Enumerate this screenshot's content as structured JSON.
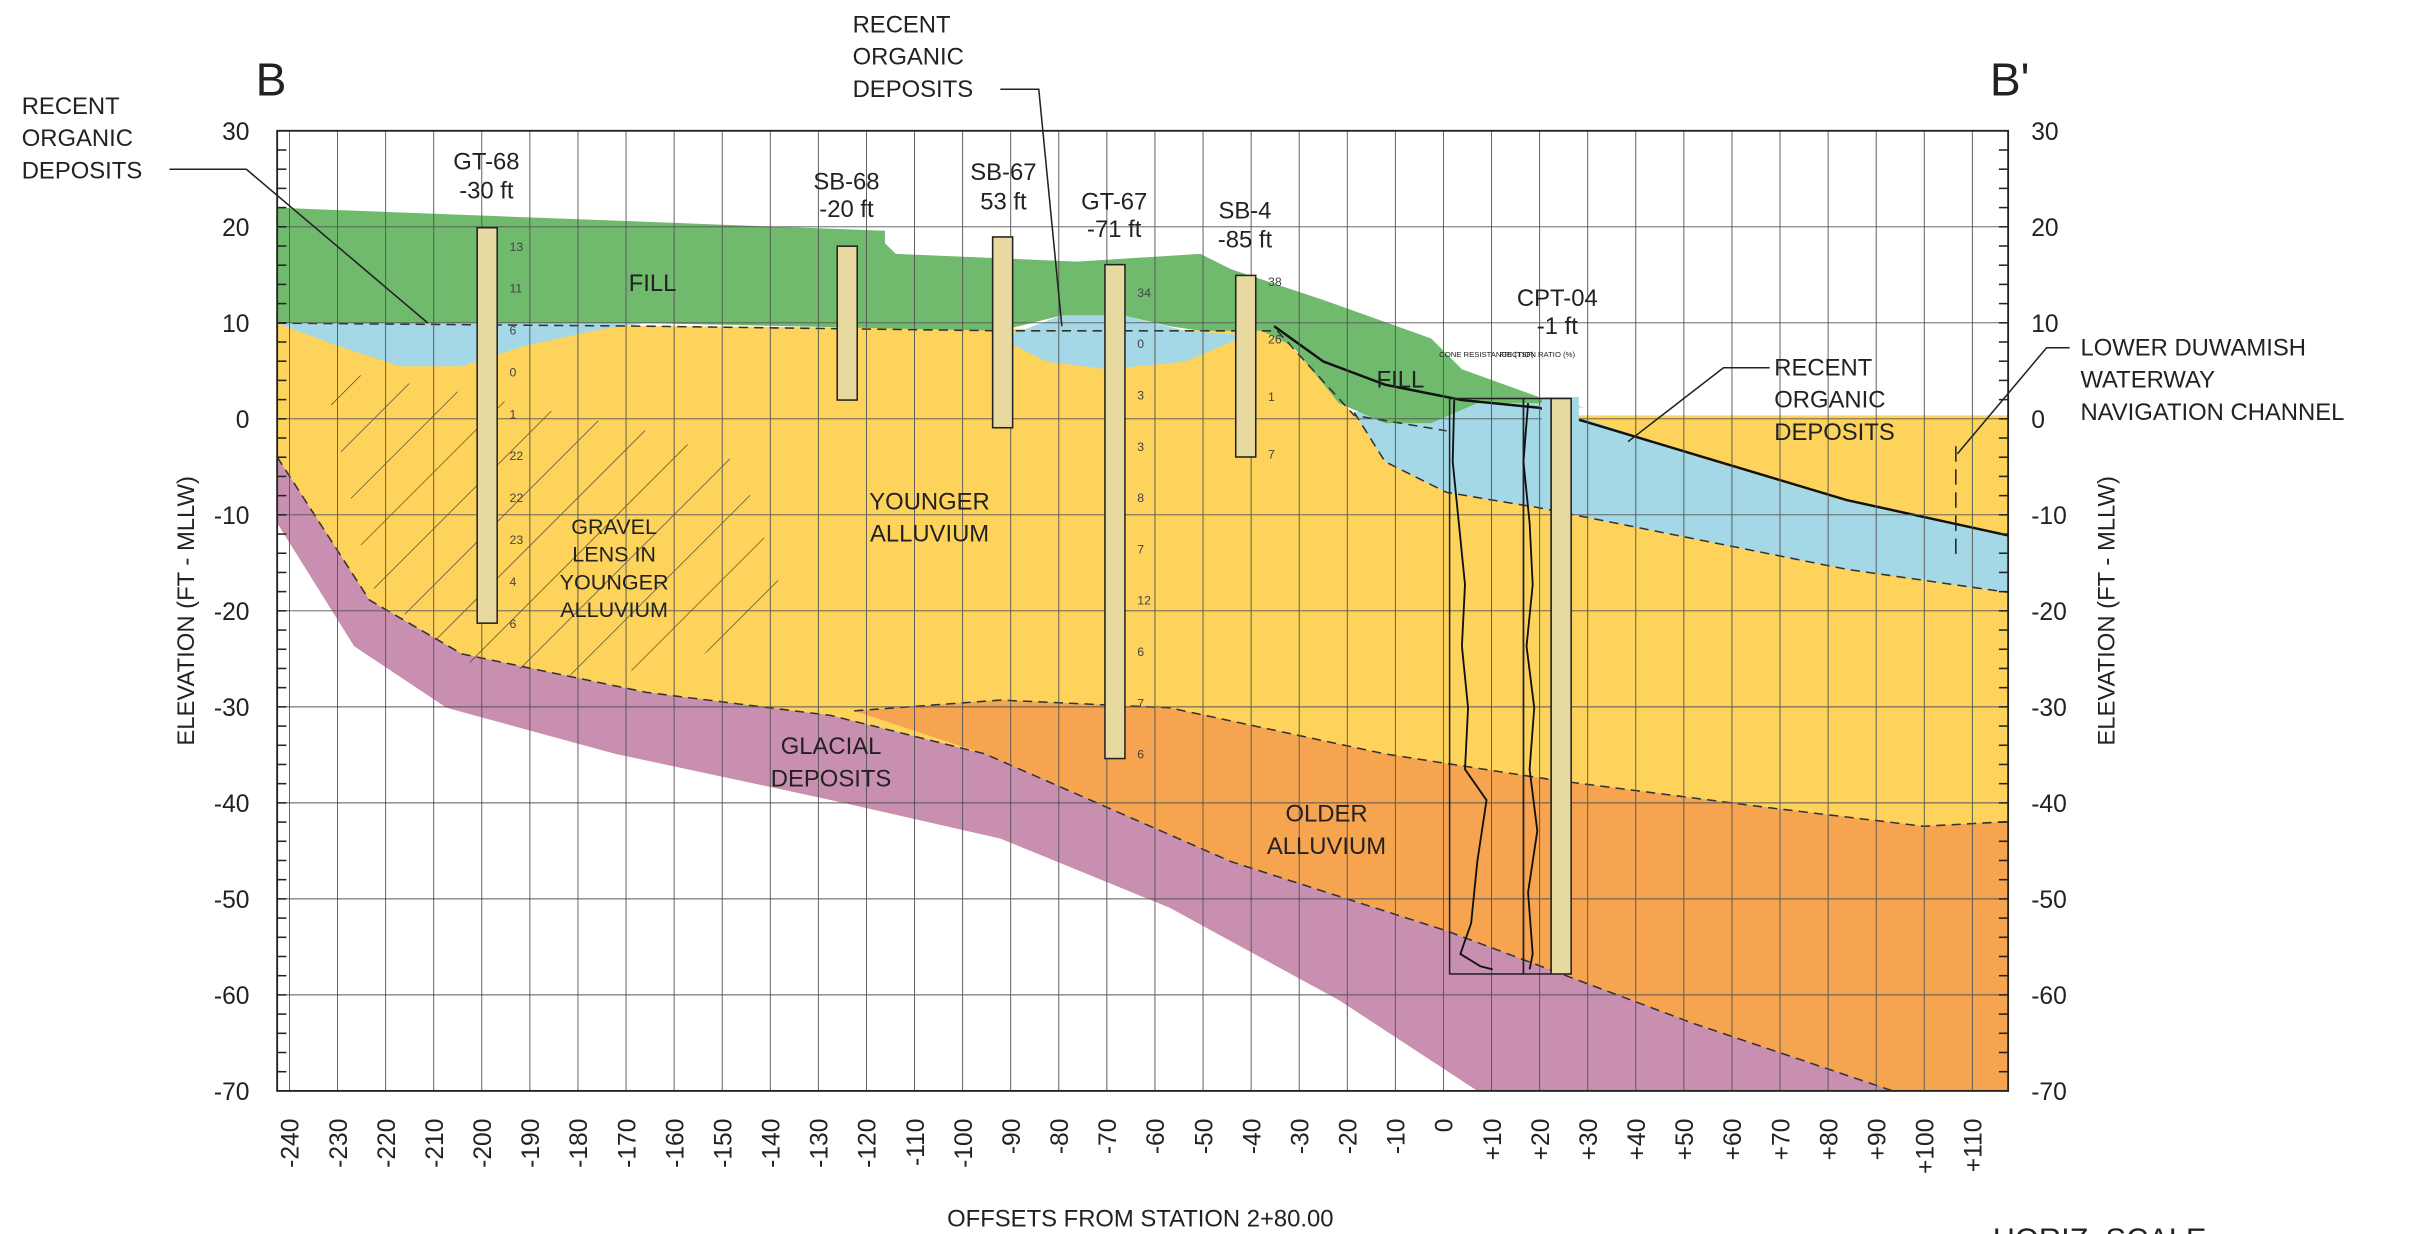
{
  "section": {
    "start_label": "B",
    "end_label": "B'"
  },
  "axes": {
    "y_label": "ELEVATION (FT - MLLW)",
    "y_label_right": "ELEVATION (FT - MLLW)",
    "x_label": "OFFSETS FROM STATION 2+80.00",
    "yticks": [
      30,
      20,
      10,
      0,
      -10,
      -20,
      -30,
      -40,
      -50,
      -60,
      -70
    ],
    "xticks": [
      -240,
      -230,
      -220,
      -210,
      -200,
      -190,
      -180,
      -170,
      -160,
      -150,
      -140,
      -130,
      -120,
      -110,
      -100,
      -90,
      -80,
      -70,
      -60,
      -50,
      -40,
      -30,
      -20,
      -10,
      0,
      {
        "value": 10,
        "label": "+10"
      },
      {
        "value": 20,
        "label": "+20"
      },
      {
        "value": 30,
        "label": "+30"
      },
      {
        "value": 40,
        "label": "+40"
      },
      {
        "value": 50,
        "label": "+50"
      },
      {
        "value": 60,
        "label": "+60"
      },
      {
        "value": 70,
        "label": "+70"
      },
      {
        "value": 80,
        "label": "+80"
      },
      {
        "value": 90,
        "label": "+90"
      },
      {
        "value": 100,
        "label": "+100"
      },
      {
        "value": 110,
        "label": "+110"
      }
    ]
  },
  "annotations": [
    {
      "lines": [
        "RECENT",
        "ORGANIC",
        "DEPOSITS"
      ]
    },
    {
      "lines": [
        "RECENT",
        "ORGANIC",
        "DEPOSITS"
      ]
    },
    {
      "lines": [
        "RECENT",
        "ORGANIC",
        "DEPOSITS"
      ]
    },
    {
      "lines": [
        "LOWER DUWAMISH",
        "WATERWAY",
        "NAVIGATION CHANNEL"
      ]
    }
  ],
  "layers": [
    {
      "lines": [
        "FILL"
      ]
    },
    {
      "lines": [
        "FILL"
      ]
    },
    {
      "lines": [
        "YOUNGER",
        "ALLUVIUM"
      ]
    },
    {
      "lines": [
        "GRAVEL",
        "LENS IN",
        "YOUNGER",
        "ALLUVIUM"
      ]
    },
    {
      "lines": [
        "GLACIAL",
        "DEPOSITS"
      ]
    },
    {
      "lines": [
        "OLDER",
        "ALLUVIUM"
      ]
    }
  ],
  "borings": [
    {
      "name": "GT-68",
      "offset": "-30 ft",
      "blow_counts": [
        "13",
        "11",
        "6",
        "0",
        "1",
        "22",
        "22",
        "23",
        "4",
        "6"
      ]
    },
    {
      "name": "SB-68",
      "offset": "-20 ft",
      "blow_counts": []
    },
    {
      "name": "SB-67",
      "offset": "53 ft",
      "blow_counts": []
    },
    {
      "name": "GT-67",
      "offset": "-71 ft",
      "blow_counts": [
        "34",
        "0",
        "3",
        "3",
        "8",
        "7",
        "12",
        "6",
        "7",
        "6"
      ]
    },
    {
      "name": "SB-4",
      "offset": "-85 ft",
      "blow_counts": [
        "38",
        "26",
        "1",
        "7"
      ]
    },
    {
      "name": "CPT-04",
      "offset": "-1 ft",
      "tracks": [
        "CONE RESISTANCE (TSF)",
        "FRICTION RATIO (%)"
      ]
    }
  ],
  "scale_note": "HORIZ. SCALE"
}
